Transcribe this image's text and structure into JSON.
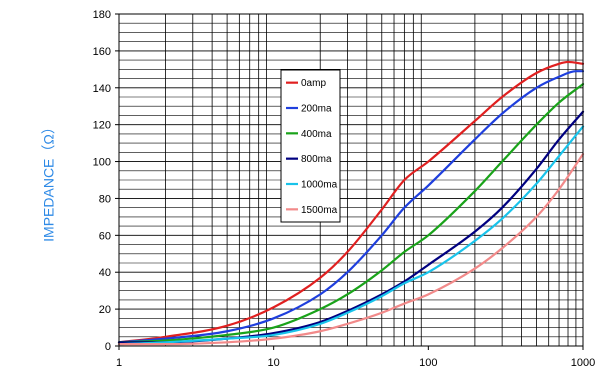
{
  "chart_data": {
    "type": "line",
    "title": "",
    "xlabel": "",
    "ylabel": "IMPEDANCE（Ω）",
    "ylabel_color": "#2e8ae6",
    "x_scale": "log",
    "xlim": [
      1,
      1000
    ],
    "ylim": [
      0,
      180
    ],
    "x_ticks": [
      "1",
      "10",
      "100",
      "1000"
    ],
    "y_ticks": [
      "0",
      "20",
      "40",
      "60",
      "80",
      "100",
      "120",
      "140",
      "160",
      "180"
    ],
    "grid": true,
    "legend_position": "center-left",
    "series": [
      {
        "name": "0amp",
        "color": "#e02020",
        "x": [
          1,
          2,
          5,
          10,
          20,
          30,
          50,
          70,
          100,
          200,
          300,
          500,
          700,
          800,
          1000
        ],
        "y": [
          2,
          5,
          11,
          21,
          37,
          51,
          74,
          90,
          100,
          122,
          135,
          148,
          153,
          154,
          153
        ]
      },
      {
        "name": "200ma",
        "color": "#1f3fdd",
        "x": [
          1,
          2,
          5,
          10,
          20,
          30,
          50,
          70,
          100,
          200,
          300,
          500,
          700,
          900,
          1000
        ],
        "y": [
          2,
          4,
          8,
          15,
          28,
          40,
          60,
          75,
          87,
          112,
          126,
          140,
          146,
          149,
          149
        ]
      },
      {
        "name": "400ma",
        "color": "#1aa31a",
        "x": [
          1,
          2,
          5,
          10,
          20,
          30,
          50,
          70,
          100,
          200,
          300,
          500,
          700,
          1000
        ],
        "y": [
          2,
          3,
          6,
          10,
          20,
          28,
          41,
          51,
          60,
          84,
          100,
          120,
          132,
          142
        ]
      },
      {
        "name": "800ma",
        "color": "#000080",
        "x": [
          1,
          2,
          5,
          10,
          20,
          30,
          50,
          70,
          100,
          200,
          300,
          500,
          700,
          1000
        ],
        "y": [
          2,
          2,
          4,
          7,
          13,
          19,
          28,
          35,
          44,
          62,
          75,
          96,
          112,
          127
        ]
      },
      {
        "name": "1000ma",
        "color": "#19c3ea",
        "x": [
          1,
          2,
          5,
          10,
          20,
          30,
          50,
          70,
          100,
          200,
          300,
          500,
          700,
          1000
        ],
        "y": [
          1,
          2,
          4,
          6,
          12,
          18,
          27,
          34,
          40,
          57,
          69,
          88,
          103,
          119
        ]
      },
      {
        "name": "1500ma",
        "color": "#f28a8a",
        "x": [
          1,
          2,
          5,
          10,
          20,
          30,
          50,
          70,
          100,
          200,
          300,
          500,
          700,
          1000
        ],
        "y": [
          1,
          1,
          2,
          4,
          8,
          12,
          18,
          23,
          28,
          42,
          53,
          70,
          85,
          104
        ]
      }
    ]
  }
}
